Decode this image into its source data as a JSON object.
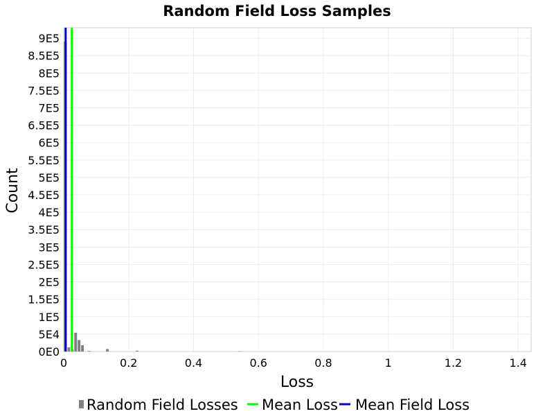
{
  "chart_data": {
    "type": "bar",
    "title": "Random Field Loss Samples",
    "xlabel": "Loss",
    "ylabel": "Count",
    "xlim": [
      0,
      1.44
    ],
    "ylim": [
      0,
      930000
    ],
    "x_ticks": [
      0,
      0.2,
      0.4,
      0.6,
      0.8,
      1,
      1.2,
      1.4
    ],
    "x_tick_labels": [
      "0",
      "0.2",
      "0.4",
      "0.6",
      "0.8",
      "1",
      "1.2",
      "1.4"
    ],
    "y_ticks": [
      0,
      50000,
      100000,
      150000,
      200000,
      250000,
      300000,
      350000,
      400000,
      450000,
      500000,
      550000,
      600000,
      650000,
      700000,
      750000,
      800000,
      850000,
      900000
    ],
    "y_tick_labels": [
      "0E0",
      "5E4",
      "1E5",
      "1.5E5",
      "2E5",
      "2.5E5",
      "3E5",
      "3.5E5",
      "4E5",
      "4.5E5",
      "5E5",
      "5.5E5",
      "6E5",
      "6.5E5",
      "7E5",
      "7.5E5",
      "8E5",
      "8.5E5",
      "9E5"
    ],
    "grid": true,
    "legend_position": "bottom",
    "series": [
      {
        "name": "Random Field Losses",
        "kind": "histogram",
        "color": "#808080",
        "bin_width": 0.0105,
        "bins": [
          {
            "x": 0.0,
            "count": 890000
          },
          {
            "x": 0.0105,
            "count": 12000
          },
          {
            "x": 0.021,
            "count": 6000
          },
          {
            "x": 0.0315,
            "count": 54000
          },
          {
            "x": 0.042,
            "count": 33000
          },
          {
            "x": 0.0525,
            "count": 18000
          },
          {
            "x": 0.0735,
            "count": 1500
          },
          {
            "x": 0.1295,
            "count": 7000
          },
          {
            "x": 0.2205,
            "count": 2500
          },
          {
            "x": 0.5355,
            "count": 500
          }
        ]
      },
      {
        "name": "Mean Loss",
        "kind": "vline",
        "x": 0.025,
        "color": "#00ff00"
      },
      {
        "name": "Mean Field Loss",
        "kind": "vline",
        "x": 0.006,
        "color": "#0000cc"
      }
    ]
  }
}
